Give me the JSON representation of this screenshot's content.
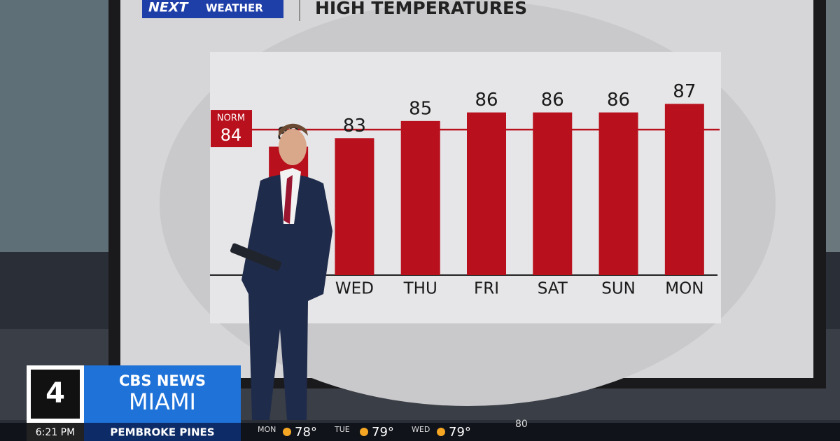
{
  "header": {
    "brand": "NEXT",
    "brand_sub": "WEATHER"
  },
  "chart_data": {
    "type": "bar",
    "title": "HIGH TEMPERATURES",
    "categories": [
      null,
      "WED",
      "THU",
      "FRI",
      "SAT",
      "SUN",
      "MON"
    ],
    "values": [
      82,
      83,
      85,
      86,
      86,
      86,
      87
    ],
    "color": "#b8101c",
    "ylim": [
      67,
      93
    ],
    "norm": {
      "label": "NORM",
      "value": 84,
      "color": "#b8101c"
    }
  },
  "station": {
    "channel": "4",
    "network": "CBS NEWS",
    "city": "MIAMI"
  },
  "ticker": {
    "time": "6:21 PM",
    "location": "PEMBROKE PINES",
    "days": [
      {
        "day": "MON",
        "temp": "78°"
      },
      {
        "day": "TUE",
        "temp": "79°"
      },
      {
        "day": "WED",
        "temp": "79°"
      }
    ],
    "partial": "80"
  }
}
